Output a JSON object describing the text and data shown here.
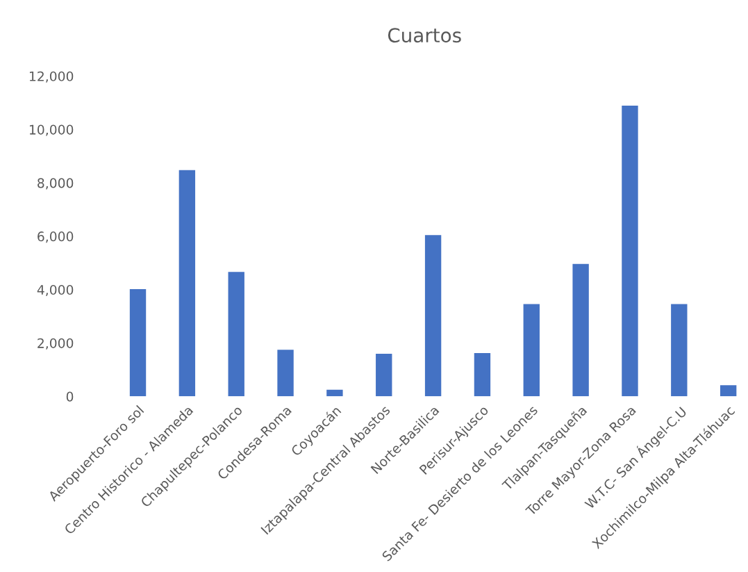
{
  "chart_data": {
    "type": "bar",
    "title": "Cuartos",
    "categories": [
      "Aeropuerto-Foro sol",
      "Centro Historico - Alameda",
      "Chapultepec-Polanco",
      "Condesa-Roma",
      "Coyoacán",
      "Iztapalapa-Central Abastos",
      "Norte-Basilica",
      "Perisur-Ajusco",
      "Santa Fe- Desierto de los Leones",
      "Tlalpan-Tasqueña",
      "Torre Mayor-Zona Rosa",
      "W.T.C- San Ángel-C.U",
      "Xochimilco-Milpa Alta-Tláhuac"
    ],
    "values": [
      4020,
      8480,
      4660,
      1750,
      250,
      1600,
      6040,
      1620,
      3460,
      4960,
      10890,
      3460,
      420
    ],
    "color": "#4472c4",
    "ylim": [
      0,
      12000
    ],
    "yticks": [
      {
        "value": 0,
        "label": "0"
      },
      {
        "value": 2000,
        "label": "2,000"
      },
      {
        "value": 4000,
        "label": "4,000"
      },
      {
        "value": 6000,
        "label": "6,000"
      },
      {
        "value": 8000,
        "label": "8,000"
      },
      {
        "value": 10000,
        "label": "10,000"
      },
      {
        "value": 12000,
        "label": "12,000"
      }
    ],
    "grid": false,
    "legend": false
  }
}
